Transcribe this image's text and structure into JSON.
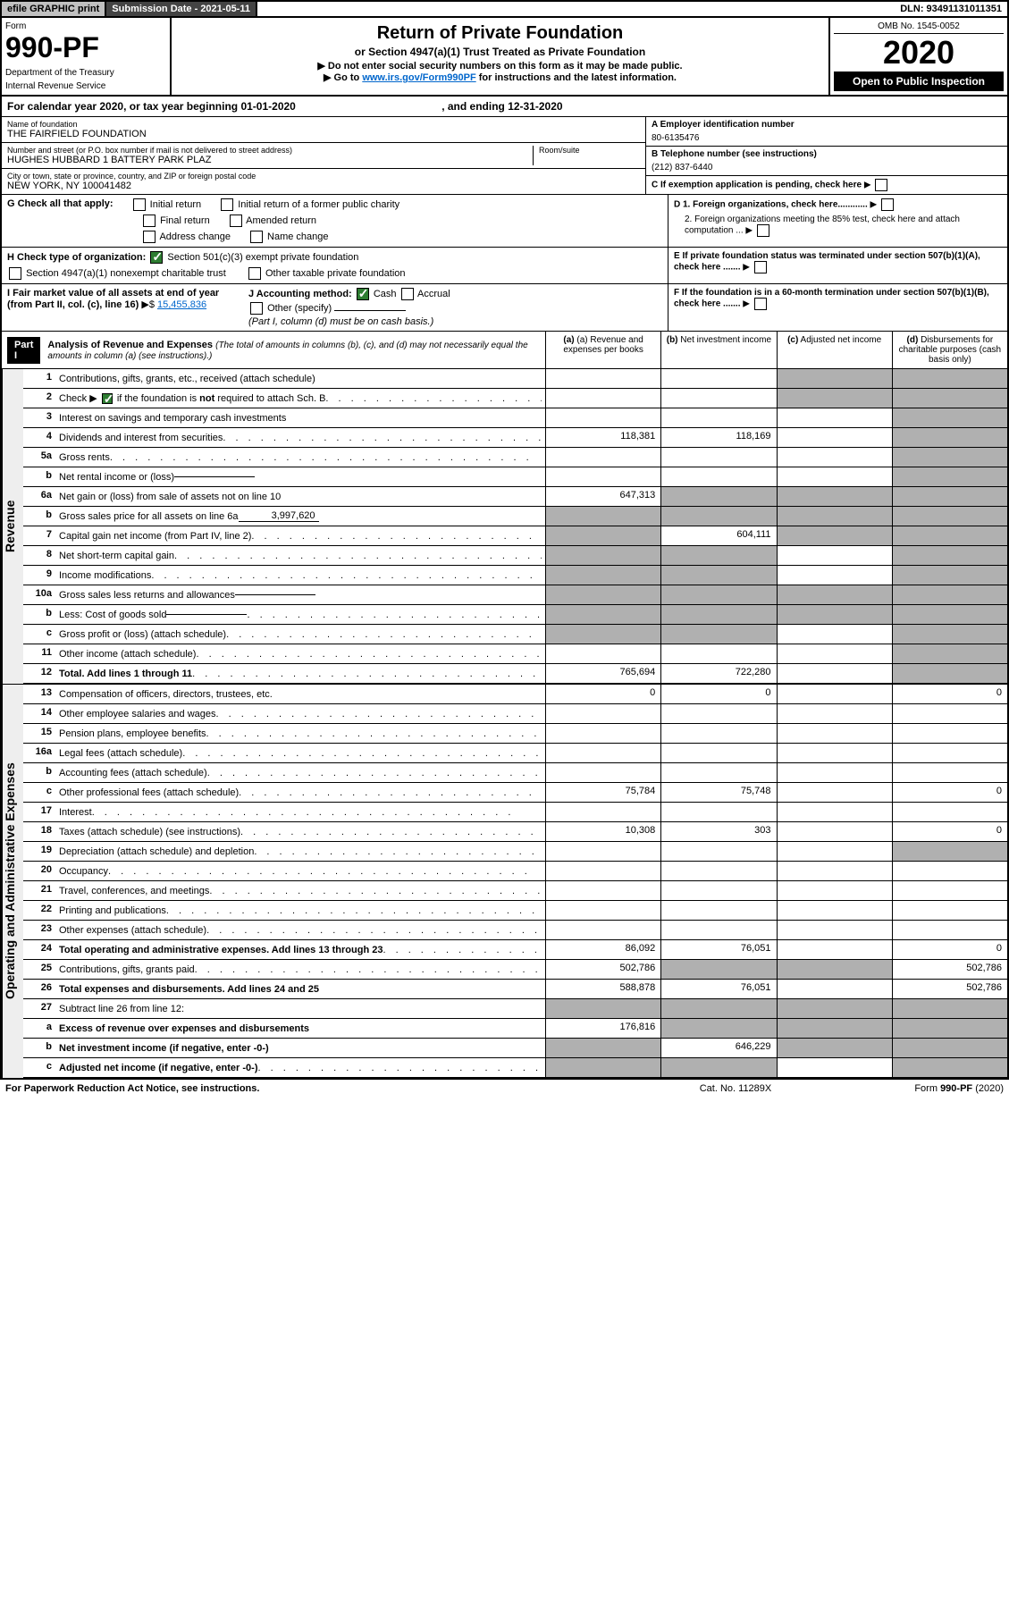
{
  "topbar": {
    "efile": "efile GRAPHIC print",
    "sub_date_label": "Submission Date - 2021-05-11",
    "dln": "DLN: 93491131011351"
  },
  "header": {
    "form_label": "Form",
    "form_num": "990-PF",
    "dept": "Department of the Treasury",
    "irs": "Internal Revenue Service",
    "title": "Return of Private Foundation",
    "subtitle": "or Section 4947(a)(1) Trust Treated as Private Foundation",
    "inst1": "▶ Do not enter social security numbers on this form as it may be made public.",
    "inst2_prefix": "▶ Go to ",
    "inst2_link": "www.irs.gov/Form990PF",
    "inst2_suffix": " for instructions and the latest information.",
    "omb": "OMB No. 1545-0052",
    "year": "2020",
    "open_public": "Open to Public Inspection"
  },
  "cal_year": {
    "prefix": "For calendar year 2020, or tax year beginning ",
    "begin": "01-01-2020",
    "mid": ", and ending ",
    "end": "12-31-2020"
  },
  "info": {
    "name_label": "Name of foundation",
    "name": "THE FAIRFIELD FOUNDATION",
    "addr_label": "Number and street (or P.O. box number if mail is not delivered to street address)",
    "addr": "HUGHES HUBBARD 1 BATTERY PARK PLAZ",
    "room_label": "Room/suite",
    "city_label": "City or town, state or province, country, and ZIP or foreign postal code",
    "city": "NEW YORK, NY  100041482",
    "ein_label": "A Employer identification number",
    "ein": "80-6135476",
    "tel_label": "B Telephone number (see instructions)",
    "tel": "(212) 837-6440",
    "c_label": "C If exemption application is pending, check here",
    "d1": "D 1. Foreign organizations, check here............",
    "d2": "2. Foreign organizations meeting the 85% test, check here and attach computation ...",
    "e_label": "E  If private foundation status was terminated under section 507(b)(1)(A), check here .......",
    "f_label": "F  If the foundation is in a 60-month termination under section 507(b)(1)(B), check here ......."
  },
  "g": {
    "label": "G Check all that apply:",
    "initial": "Initial return",
    "initial_former": "Initial return of a former public charity",
    "final": "Final return",
    "amended": "Amended return",
    "addr_change": "Address change",
    "name_change": "Name change"
  },
  "h": {
    "label": "H Check type of organization:",
    "sec501": "Section 501(c)(3) exempt private foundation",
    "sec4947": "Section 4947(a)(1) nonexempt charitable trust",
    "other_tax": "Other taxable private foundation"
  },
  "i": {
    "label": "I Fair market value of all assets at end of year (from Part II, col. (c), line 16)",
    "arrow": "▶$",
    "value": "15,455,836"
  },
  "j": {
    "label": "J Accounting method:",
    "cash": "Cash",
    "accrual": "Accrual",
    "other": "Other (specify)",
    "note": "(Part I, column (d) must be on cash basis.)"
  },
  "part1": {
    "label": "Part I",
    "title": "Analysis of Revenue and Expenses",
    "title_note": "(The total of amounts in columns (b), (c), and (d) may not necessarily equal the amounts in column (a) (see instructions).)",
    "col_a": "(a) Revenue and expenses per books",
    "col_b": "(b) Net investment income",
    "col_c": "(c) Adjusted net income",
    "col_d": "(d) Disbursements for charitable purposes (cash basis only)"
  },
  "sections": {
    "revenue": "Revenue",
    "opex": "Operating and Administrative Expenses"
  },
  "lines": [
    {
      "num": "1",
      "desc": "Contributions, gifts, grants, etc., received (attach schedule)",
      "a": "",
      "b": "",
      "c": "s",
      "d": "s"
    },
    {
      "num": "2",
      "desc": "Check ▶ ☑ if the foundation is not required to attach Sch. B",
      "a": "",
      "b": "",
      "c": "s",
      "d": "s",
      "dots": true
    },
    {
      "num": "3",
      "desc": "Interest on savings and temporary cash investments",
      "a": "",
      "b": "",
      "c": "",
      "d": "s"
    },
    {
      "num": "4",
      "desc": "Dividends and interest from securities",
      "a": "118,381",
      "b": "118,169",
      "c": "",
      "d": "s",
      "dots": true
    },
    {
      "num": "5a",
      "desc": "Gross rents",
      "a": "",
      "b": "",
      "c": "",
      "d": "s",
      "dots": true
    },
    {
      "num": "b",
      "desc": "Net rental income or (loss)",
      "a": "",
      "b": "",
      "c": "",
      "d": "s",
      "inline": true
    },
    {
      "num": "6a",
      "desc": "Net gain or (loss) from sale of assets not on line 10",
      "a": "647,313",
      "b": "s",
      "c": "s",
      "d": "s"
    },
    {
      "num": "b",
      "desc": "Gross sales price for all assets on line 6a",
      "a": "s",
      "b": "s",
      "c": "s",
      "d": "s",
      "inline_val": "3,997,620"
    },
    {
      "num": "7",
      "desc": "Capital gain net income (from Part IV, line 2)",
      "a": "s",
      "b": "604,111",
      "c": "s",
      "d": "s",
      "dots": true
    },
    {
      "num": "8",
      "desc": "Net short-term capital gain",
      "a": "s",
      "b": "s",
      "c": "",
      "d": "s",
      "dots": true
    },
    {
      "num": "9",
      "desc": "Income modifications",
      "a": "s",
      "b": "s",
      "c": "",
      "d": "s",
      "dots": true
    },
    {
      "num": "10a",
      "desc": "Gross sales less returns and allowances",
      "a": "s",
      "b": "s",
      "c": "s",
      "d": "s",
      "inline": true
    },
    {
      "num": "b",
      "desc": "Less: Cost of goods sold",
      "a": "s",
      "b": "s",
      "c": "s",
      "d": "s",
      "dots": true,
      "inline": true
    },
    {
      "num": "c",
      "desc": "Gross profit or (loss) (attach schedule)",
      "a": "s",
      "b": "s",
      "c": "",
      "d": "s",
      "dots": true
    },
    {
      "num": "11",
      "desc": "Other income (attach schedule)",
      "a": "",
      "b": "",
      "c": "",
      "d": "s",
      "dots": true
    },
    {
      "num": "12",
      "desc": "Total. Add lines 1 through 11",
      "a": "765,694",
      "b": "722,280",
      "c": "",
      "d": "s",
      "bold": true,
      "dots": true
    }
  ],
  "opex_lines": [
    {
      "num": "13",
      "desc": "Compensation of officers, directors, trustees, etc.",
      "a": "0",
      "b": "0",
      "c": "",
      "d": "0"
    },
    {
      "num": "14",
      "desc": "Other employee salaries and wages",
      "a": "",
      "b": "",
      "c": "",
      "d": "",
      "dots": true
    },
    {
      "num": "15",
      "desc": "Pension plans, employee benefits",
      "a": "",
      "b": "",
      "c": "",
      "d": "",
      "dots": true
    },
    {
      "num": "16a",
      "desc": "Legal fees (attach schedule)",
      "a": "",
      "b": "",
      "c": "",
      "d": "",
      "dots": true
    },
    {
      "num": "b",
      "desc": "Accounting fees (attach schedule)",
      "a": "",
      "b": "",
      "c": "",
      "d": "",
      "dots": true
    },
    {
      "num": "c",
      "desc": "Other professional fees (attach schedule)",
      "a": "75,784",
      "b": "75,748",
      "c": "",
      "d": "0",
      "dots": true
    },
    {
      "num": "17",
      "desc": "Interest",
      "a": "",
      "b": "",
      "c": "",
      "d": "",
      "dots": true
    },
    {
      "num": "18",
      "desc": "Taxes (attach schedule) (see instructions)",
      "a": "10,308",
      "b": "303",
      "c": "",
      "d": "0",
      "dots": true
    },
    {
      "num": "19",
      "desc": "Depreciation (attach schedule) and depletion",
      "a": "",
      "b": "",
      "c": "",
      "d": "s",
      "dots": true
    },
    {
      "num": "20",
      "desc": "Occupancy",
      "a": "",
      "b": "",
      "c": "",
      "d": "",
      "dots": true
    },
    {
      "num": "21",
      "desc": "Travel, conferences, and meetings",
      "a": "",
      "b": "",
      "c": "",
      "d": "",
      "dots": true
    },
    {
      "num": "22",
      "desc": "Printing and publications",
      "a": "",
      "b": "",
      "c": "",
      "d": "",
      "dots": true
    },
    {
      "num": "23",
      "desc": "Other expenses (attach schedule)",
      "a": "",
      "b": "",
      "c": "",
      "d": "",
      "dots": true
    },
    {
      "num": "24",
      "desc": "Total operating and administrative expenses. Add lines 13 through 23",
      "a": "86,092",
      "b": "76,051",
      "c": "",
      "d": "0",
      "bold": true,
      "dots": true
    },
    {
      "num": "25",
      "desc": "Contributions, gifts, grants paid",
      "a": "502,786",
      "b": "s",
      "c": "s",
      "d": "502,786",
      "dots": true
    },
    {
      "num": "26",
      "desc": "Total expenses and disbursements. Add lines 24 and 25",
      "a": "588,878",
      "b": "76,051",
      "c": "",
      "d": "502,786",
      "bold": true
    },
    {
      "num": "27",
      "desc": "Subtract line 26 from line 12:",
      "a": "s",
      "b": "s",
      "c": "s",
      "d": "s"
    },
    {
      "num": "a",
      "desc": "Excess of revenue over expenses and disbursements",
      "a": "176,816",
      "b": "s",
      "c": "s",
      "d": "s",
      "bold": true
    },
    {
      "num": "b",
      "desc": "Net investment income (if negative, enter -0-)",
      "a": "s",
      "b": "646,229",
      "c": "s",
      "d": "s",
      "bold": true
    },
    {
      "num": "c",
      "desc": "Adjusted net income (if negative, enter -0-)",
      "a": "s",
      "b": "s",
      "c": "",
      "d": "s",
      "bold": true,
      "dots": true
    }
  ],
  "footer": {
    "left": "For Paperwork Reduction Act Notice, see instructions.",
    "mid": "Cat. No. 11289X",
    "right": "Form 990-PF (2020)"
  }
}
